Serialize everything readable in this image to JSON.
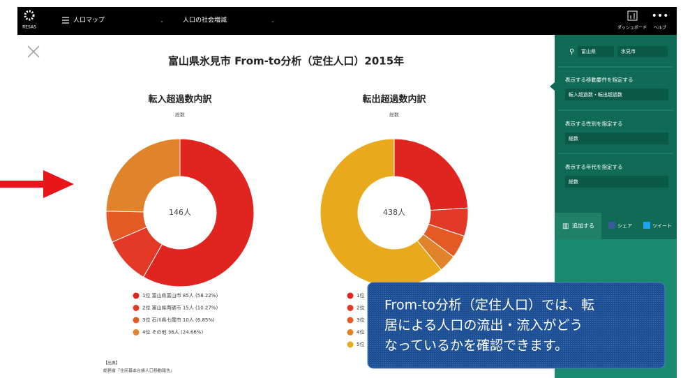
{
  "header": {
    "logo": "RESAS",
    "menu": "人口マップ",
    "submenu": "人口の社会増減",
    "dashboard": "ダッシュボード",
    "help": "ヘルプ"
  },
  "title": "富山県氷見市 From-to分析（定住人口）2015年",
  "donuts": [
    {
      "title": "転入超過数内訳",
      "subtitle": "総数",
      "center_label": "146人",
      "items": [
        {
          "label": "1位 富山県富山市 85人 (58.22%)",
          "value": 85,
          "color": "#e0241f"
        },
        {
          "label": "2位 富山県南砺市 15人 (10.27%)",
          "value": 15,
          "color": "#e23a26"
        },
        {
          "label": "3位 石川県七尾市 10人 (6.85%)",
          "value": 10,
          "color": "#e55a24"
        },
        {
          "label": "4位 その他 36人 (24.66%)",
          "value": 36,
          "color": "#e0832a"
        }
      ]
    },
    {
      "title": "転出超過数内訳",
      "subtitle": "総数",
      "center_label": "438人",
      "items": [
        {
          "label": "1位",
          "value": 105,
          "color": "#e0241f"
        },
        {
          "label": "2位",
          "value": 27,
          "color": "#e23a26"
        },
        {
          "label": "3位",
          "value": 22,
          "color": "#e55a24"
        },
        {
          "label": "4位",
          "value": 17,
          "color": "#e0832a"
        },
        {
          "label": "5位",
          "value": 267,
          "color": "#e8a91c"
        }
      ]
    }
  ],
  "source": {
    "heading": "【出典】",
    "text": "総務省「住民基本台帳人口移動報告」"
  },
  "sidebar": {
    "prefecture": "富山県",
    "city": "氷見市",
    "section1": "表示する移動要件を指定する",
    "select1": "転入超過数・転出超過数",
    "section2": "表示する性別を指定する",
    "select2": "総数",
    "section3": "表示する年代を指定する",
    "select3": "総数",
    "add": "追加する",
    "share": "シェア",
    "tweet": "ツイート"
  },
  "callout": [
    "From-to分析（定住人口）では、転",
    "居による人口の流出・流入がどう",
    "なっているかを確認できます。"
  ]
}
